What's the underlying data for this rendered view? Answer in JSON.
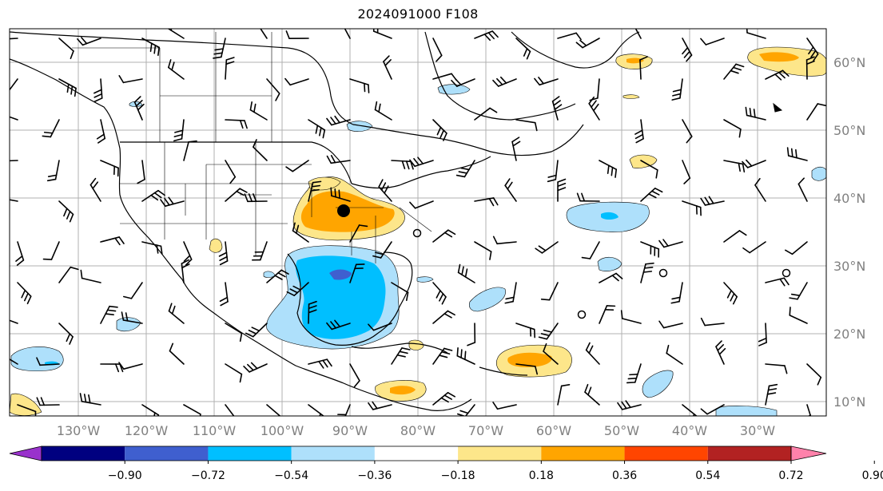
{
  "title": "2024091000 F108",
  "longitude_labels": [
    "130°W",
    "120°W",
    "110°W",
    "100°W",
    "90°W",
    "80°W",
    "70°W",
    "60°W",
    "50°W",
    "40°W",
    "30°W"
  ],
  "latitude_labels": [
    "60°N",
    "50°N",
    "40°N",
    "30°N",
    "20°N",
    "10°N"
  ],
  "colorbar": {
    "ticks": [
      "−0.90",
      "−0.72",
      "−0.54",
      "−0.36",
      "−0.18",
      "0.18",
      "0.36",
      "0.54",
      "0.72",
      "0.90"
    ],
    "colors": [
      "#9932cc",
      "#000080",
      "#3f5fcf",
      "#00bfff",
      "#aee0fb",
      "#ffffff",
      "#fde68a",
      "#ffa500",
      "#ff4500",
      "#b22222",
      "#ff82ab"
    ]
  },
  "colors": {
    "positive_light": "#fde68a",
    "positive_mid": "#ffa500",
    "positive_strong": "#ff4500",
    "negative_light": "#aee0fb",
    "negative_mid": "#00bfff",
    "negative_strong": "#3f5fcf",
    "gridline": "#b0b0b0",
    "label_gray": "#808080"
  },
  "icons": [
    "wind-barb-icon",
    "station-circle-icon",
    "location-marker-icon"
  ]
}
